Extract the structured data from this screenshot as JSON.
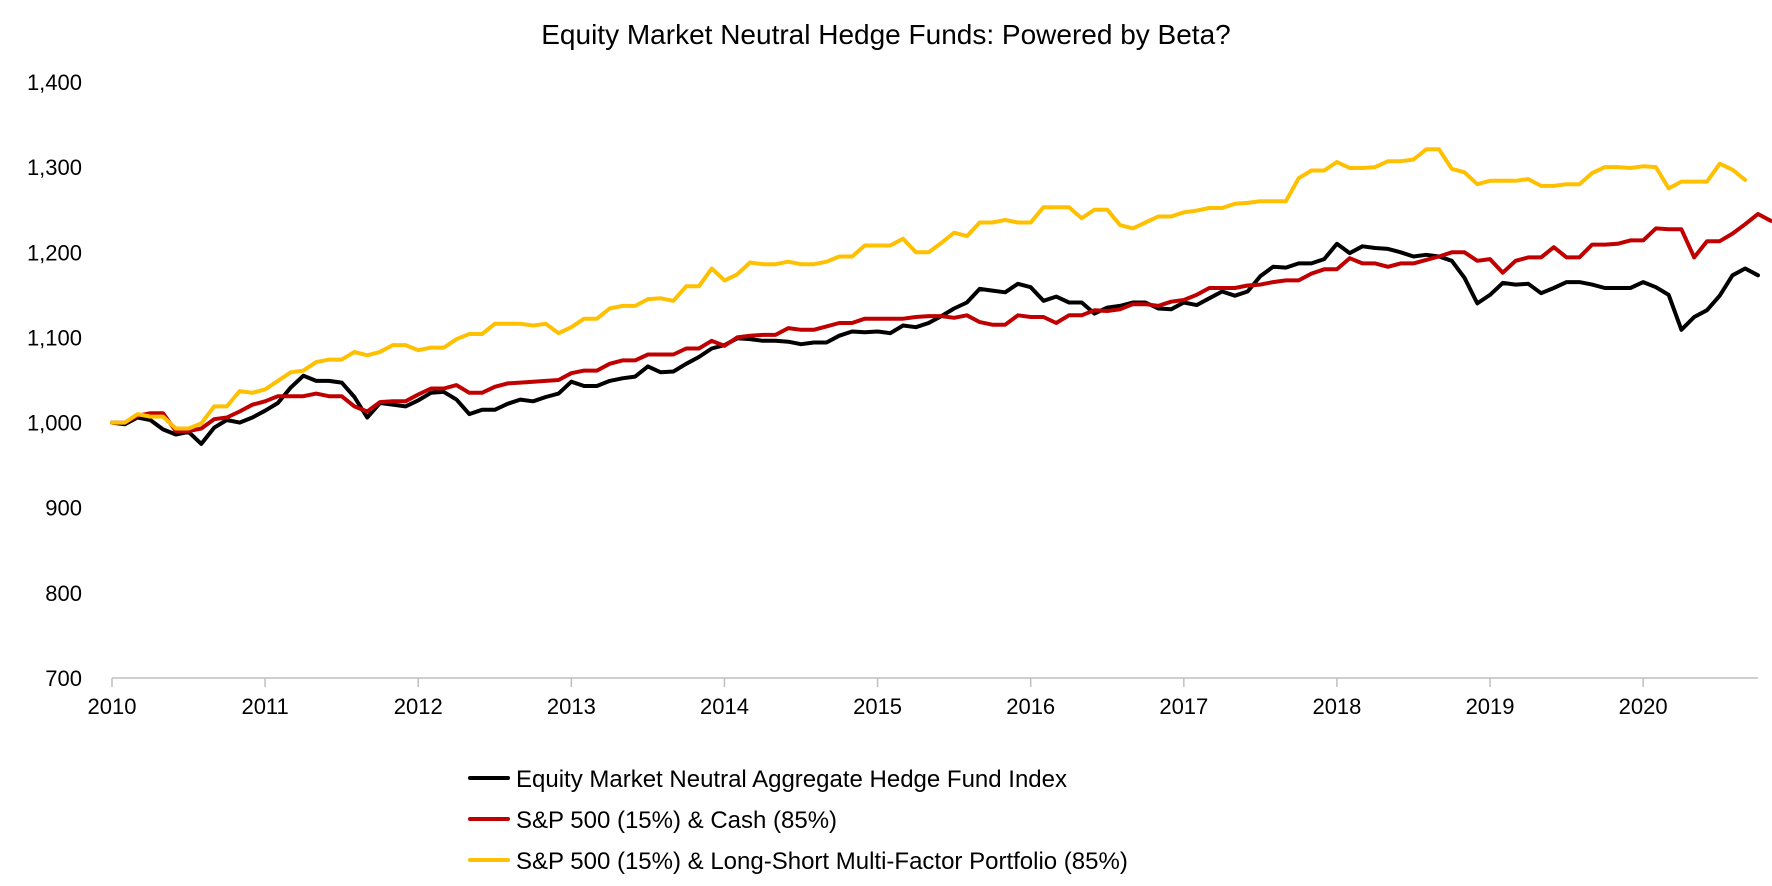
{
  "chart_data": {
    "type": "line",
    "title": "Equity Market Neutral Hedge Funds: Powered by Beta?",
    "xlabel": "",
    "ylabel": "",
    "x_start": "2010-01",
    "x_end": "2020-09",
    "x_frequency": "monthly",
    "xlim": [
      2010,
      2020.75
    ],
    "ylim": [
      700,
      1400
    ],
    "y_ticks": [
      "700",
      "800",
      "900",
      "1,000",
      "1,100",
      "1,200",
      "1,300",
      "1,400"
    ],
    "x_ticks": [
      "2010",
      "2011",
      "2012",
      "2013",
      "2014",
      "2015",
      "2016",
      "2017",
      "2018",
      "2019",
      "2020"
    ],
    "grid": false,
    "legend_position": "bottom",
    "series": [
      {
        "name": "Equity Market Neutral Aggregate Hedge Fund Index",
        "color": "#000000",
        "values": [
          1000,
          998,
          1006,
          1003,
          992,
          986,
          989,
          975,
          994,
          1003,
          1000,
          1006,
          1014,
          1023,
          1041,
          1055,
          1049,
          1049,
          1047,
          1030,
          1006,
          1023,
          1021,
          1019,
          1026,
          1035,
          1036,
          1027,
          1010,
          1015,
          1015,
          1022,
          1027,
          1025,
          1030,
          1034,
          1048,
          1043,
          1043,
          1049,
          1052,
          1054,
          1066,
          1059,
          1060,
          1069,
          1077,
          1087,
          1091,
          1099,
          1098,
          1096,
          1096,
          1095,
          1092,
          1094,
          1094,
          1102,
          1107,
          1106,
          1107,
          1105,
          1114,
          1112,
          1117,
          1125,
          1134,
          1141,
          1157,
          1155,
          1153,
          1163,
          1159,
          1143,
          1148,
          1141,
          1141,
          1128,
          1135,
          1137,
          1141,
          1141,
          1134,
          1133,
          1141,
          1138,
          1146,
          1154,
          1149,
          1154,
          1172,
          1183,
          1182,
          1187,
          1187,
          1192,
          1210,
          1199,
          1207,
          1205,
          1204,
          1200,
          1195,
          1197,
          1195,
          1190,
          1170,
          1140,
          1150,
          1164,
          1162,
          1163,
          1152,
          1158,
          1165,
          1165,
          1162,
          1158,
          1158,
          1158,
          1165,
          1159,
          1150,
          1109,
          1124,
          1132,
          1149,
          1173,
          1181,
          1173
        ]
      },
      {
        "name": "S&P 500 (15%) & Cash (85%)",
        "color": "#C00000",
        "values": [
          1000,
          1000,
          1008,
          1011,
          1011,
          990,
          990,
          993,
          1004,
          1006,
          1013,
          1021,
          1025,
          1031,
          1031,
          1031,
          1034,
          1031,
          1031,
          1019,
          1013,
          1024,
          1025,
          1025,
          1033,
          1040,
          1040,
          1044,
          1035,
          1035,
          1042,
          1046,
          1047,
          1048,
          1049,
          1050,
          1058,
          1061,
          1061,
          1069,
          1073,
          1073,
          1080,
          1080,
          1080,
          1087,
          1087,
          1096,
          1090,
          1100,
          1102,
          1103,
          1103,
          1111,
          1109,
          1109,
          1113,
          1117,
          1117,
          1122,
          1122,
          1122,
          1122,
          1124,
          1125,
          1125,
          1123,
          1126,
          1118,
          1115,
          1115,
          1126,
          1124,
          1124,
          1117,
          1126,
          1126,
          1132,
          1131,
          1133,
          1139,
          1139,
          1137,
          1142,
          1144,
          1150,
          1158,
          1158,
          1158,
          1161,
          1162,
          1165,
          1167,
          1167,
          1175,
          1180,
          1180,
          1193,
          1187,
          1187,
          1183,
          1187,
          1187,
          1191,
          1195,
          1200,
          1200,
          1190,
          1192,
          1176,
          1190,
          1194,
          1194,
          1206,
          1194,
          1194,
          1209,
          1209,
          1210,
          1214,
          1214,
          1228,
          1227,
          1227,
          1194,
          1213,
          1213,
          1222,
          1233,
          1245,
          1237
        ]
      },
      {
        "name": "S&P 500 (15%) & Long-Short Multi-Factor Portfolio (85%)",
        "color": "#FFC000",
        "values": [
          1000,
          1000,
          1010,
          1007,
          1007,
          993,
          993,
          999,
          1019,
          1019,
          1037,
          1035,
          1039,
          1049,
          1059,
          1061,
          1071,
          1074,
          1074,
          1083,
          1079,
          1083,
          1091,
          1091,
          1085,
          1088,
          1088,
          1098,
          1104,
          1104,
          1116,
          1116,
          1116,
          1114,
          1116,
          1105,
          1112,
          1122,
          1122,
          1134,
          1137,
          1137,
          1145,
          1146,
          1143,
          1160,
          1160,
          1181,
          1167,
          1174,
          1188,
          1186,
          1186,
          1189,
          1186,
          1186,
          1189,
          1195,
          1195,
          1208,
          1208,
          1208,
          1216,
          1200,
          1200,
          1211,
          1223,
          1219,
          1235,
          1235,
          1238,
          1235,
          1235,
          1253,
          1253,
          1253,
          1240,
          1250,
          1250,
          1232,
          1228,
          1235,
          1242,
          1242,
          1247,
          1249,
          1252,
          1252,
          1257,
          1258,
          1260,
          1260,
          1260,
          1287,
          1296,
          1296,
          1306,
          1299,
          1299,
          1300,
          1307,
          1307,
          1309,
          1321,
          1321,
          1298,
          1294,
          1280,
          1284,
          1284,
          1284,
          1286,
          1278,
          1278,
          1280,
          1280,
          1293,
          1300,
          1300,
          1299,
          1301,
          1300,
          1275,
          1283,
          1283,
          1283,
          1304,
          1297,
          1285
        ]
      }
    ]
  }
}
